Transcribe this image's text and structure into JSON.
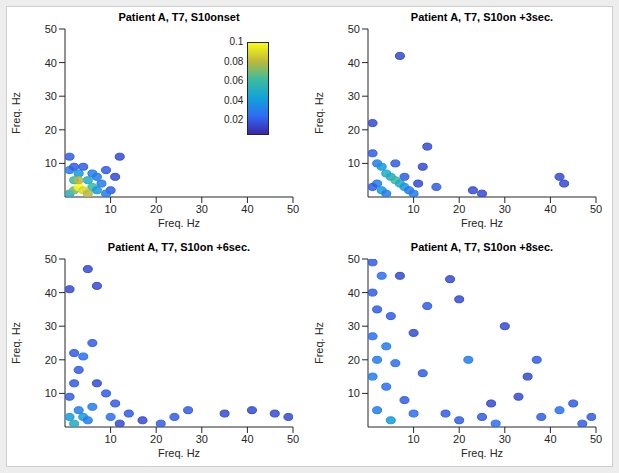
{
  "chart_data": [
    {
      "type": "contour",
      "title": "Patient A, T7, S10onset",
      "xlabel": "Freq. Hz",
      "ylabel": "Freq. Hz",
      "xlim": [
        0,
        50
      ],
      "ylim": [
        0,
        50
      ],
      "xticks": [
        10,
        20,
        30,
        40,
        50
      ],
      "yticks": [
        10,
        20,
        30,
        40,
        50
      ],
      "colorbar": {
        "range": [
          0.005,
          0.1
        ],
        "ticks": [
          0.02,
          0.04,
          0.06,
          0.08,
          0.1
        ]
      },
      "cells": [
        [
          1,
          1,
          0.05
        ],
        [
          2,
          2,
          0.07
        ],
        [
          3,
          3,
          0.1
        ],
        [
          4,
          2,
          0.09
        ],
        [
          2,
          5,
          0.06
        ],
        [
          3,
          7,
          0.04
        ],
        [
          5,
          5,
          0.05
        ],
        [
          6,
          3,
          0.06
        ],
        [
          7,
          2,
          0.04
        ],
        [
          8,
          4,
          0.03
        ],
        [
          1,
          8,
          0.03
        ],
        [
          2,
          9,
          0.02
        ],
        [
          4,
          9,
          0.02
        ],
        [
          6,
          7,
          0.03
        ],
        [
          9,
          8,
          0.02
        ],
        [
          10,
          2,
          0.02
        ],
        [
          11,
          6,
          0.015
        ],
        [
          12,
          12,
          0.015
        ],
        [
          1,
          12,
          0.02
        ],
        [
          5,
          1,
          0.08
        ],
        [
          3,
          5,
          0.08
        ],
        [
          7,
          6,
          0.03
        ],
        [
          9,
          1,
          0.03
        ]
      ]
    },
    {
      "type": "contour",
      "title": "Patient A, T7, S10on +3sec.",
      "xlabel": "Freq. Hz",
      "ylabel": "Freq. Hz",
      "xlim": [
        0,
        50
      ],
      "ylim": [
        0,
        50
      ],
      "xticks": [
        10,
        20,
        30,
        40,
        50
      ],
      "yticks": [
        10,
        20,
        30,
        40,
        50
      ],
      "cells": [
        [
          1,
          13,
          0.02
        ],
        [
          2,
          10,
          0.03
        ],
        [
          3,
          9,
          0.04
        ],
        [
          4,
          7,
          0.05
        ],
        [
          5,
          6,
          0.05
        ],
        [
          6,
          5,
          0.06
        ],
        [
          7,
          4,
          0.05
        ],
        [
          8,
          3,
          0.04
        ],
        [
          9,
          2,
          0.03
        ],
        [
          10,
          1,
          0.03
        ],
        [
          2,
          4,
          0.03
        ],
        [
          3,
          2,
          0.04
        ],
        [
          1,
          3,
          0.02
        ],
        [
          6,
          10,
          0.02
        ],
        [
          8,
          6,
          0.02
        ],
        [
          11,
          4,
          0.015
        ],
        [
          12,
          9,
          0.015
        ],
        [
          13,
          15,
          0.015
        ],
        [
          7,
          42,
          0.015
        ],
        [
          1,
          22,
          0.015
        ],
        [
          23,
          2,
          0.015
        ],
        [
          25,
          1,
          0.015
        ],
        [
          42,
          6,
          0.015
        ],
        [
          43,
          4,
          0.015
        ],
        [
          15,
          3,
          0.02
        ],
        [
          4,
          1,
          0.03
        ]
      ]
    },
    {
      "type": "contour",
      "title": "Patient A, T7, S10on +6sec.",
      "xlabel": "Freq. Hz",
      "ylabel": "Freq. Hz",
      "xlim": [
        0,
        50
      ],
      "ylim": [
        0,
        50
      ],
      "xticks": [
        10,
        20,
        30,
        40,
        50
      ],
      "yticks": [
        10,
        20,
        30,
        40,
        50
      ],
      "cells": [
        [
          1,
          3,
          0.04
        ],
        [
          2,
          1,
          0.05
        ],
        [
          3,
          5,
          0.03
        ],
        [
          4,
          3,
          0.04
        ],
        [
          5,
          2,
          0.03
        ],
        [
          6,
          6,
          0.03
        ],
        [
          1,
          9,
          0.02
        ],
        [
          2,
          13,
          0.02
        ],
        [
          3,
          17,
          0.02
        ],
        [
          4,
          21,
          0.025
        ],
        [
          6,
          25,
          0.02
        ],
        [
          5,
          47,
          0.015
        ],
        [
          7,
          42,
          0.015
        ],
        [
          1,
          41,
          0.015
        ],
        [
          2,
          22,
          0.02
        ],
        [
          9,
          10,
          0.02
        ],
        [
          11,
          7,
          0.02
        ],
        [
          14,
          4,
          0.02
        ],
        [
          12,
          1,
          0.015
        ],
        [
          21,
          1,
          0.02
        ],
        [
          24,
          3,
          0.02
        ],
        [
          27,
          5,
          0.02
        ],
        [
          35,
          4,
          0.015
        ],
        [
          41,
          5,
          0.015
        ],
        [
          46,
          4,
          0.015
        ],
        [
          49,
          3,
          0.015
        ],
        [
          7,
          13,
          0.015
        ],
        [
          10,
          3,
          0.025
        ],
        [
          17,
          2,
          0.015
        ]
      ]
    },
    {
      "type": "contour",
      "title": "Patient A, T7, S10on +8sec.",
      "xlabel": "Freq. Hz",
      "ylabel": "Freq. Hz",
      "xlim": [
        0,
        50
      ],
      "ylim": [
        0,
        50
      ],
      "xticks": [
        10,
        20,
        30,
        40,
        50
      ],
      "yticks": [
        10,
        20,
        30,
        40,
        50
      ],
      "cells": [
        [
          1,
          49,
          0.02
        ],
        [
          3,
          45,
          0.025
        ],
        [
          1,
          40,
          0.02
        ],
        [
          2,
          35,
          0.02
        ],
        [
          5,
          33,
          0.02
        ],
        [
          1,
          27,
          0.025
        ],
        [
          4,
          24,
          0.03
        ],
        [
          2,
          20,
          0.03
        ],
        [
          6,
          19,
          0.025
        ],
        [
          1,
          15,
          0.03
        ],
        [
          4,
          12,
          0.025
        ],
        [
          8,
          8,
          0.02
        ],
        [
          2,
          5,
          0.03
        ],
        [
          5,
          2,
          0.04
        ],
        [
          10,
          4,
          0.025
        ],
        [
          12,
          16,
          0.02
        ],
        [
          13,
          36,
          0.02
        ],
        [
          18,
          44,
          0.015
        ],
        [
          20,
          38,
          0.015
        ],
        [
          22,
          20,
          0.03
        ],
        [
          17,
          4,
          0.02
        ],
        [
          20,
          2,
          0.02
        ],
        [
          25,
          3,
          0.02
        ],
        [
          28,
          1,
          0.025
        ],
        [
          30,
          30,
          0.015
        ],
        [
          33,
          9,
          0.015
        ],
        [
          37,
          20,
          0.02
        ],
        [
          38,
          3,
          0.02
        ],
        [
          42,
          5,
          0.025
        ],
        [
          45,
          7,
          0.02
        ],
        [
          47,
          1,
          0.02
        ],
        [
          49,
          3,
          0.02
        ],
        [
          10,
          28,
          0.015
        ],
        [
          7,
          45,
          0.015
        ],
        [
          27,
          7,
          0.015
        ],
        [
          35,
          15,
          0.015
        ]
      ]
    }
  ]
}
